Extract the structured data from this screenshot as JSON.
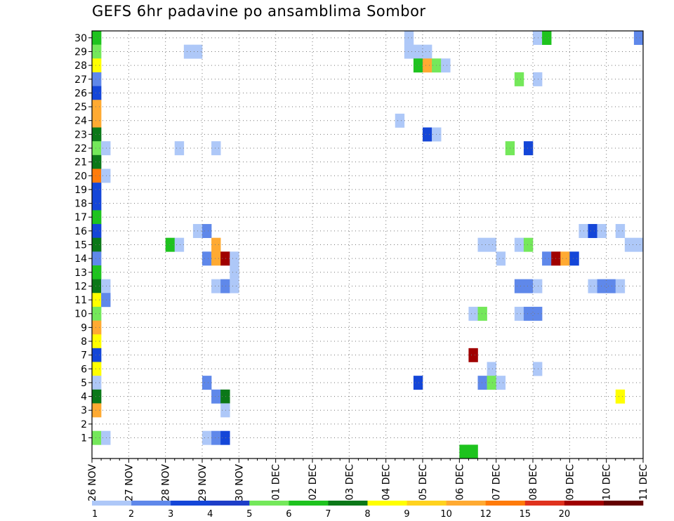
{
  "chart_data": {
    "type": "heatmap",
    "title": "GEFS 6hr padavine po ansamblima Sombor",
    "members": [
      1,
      2,
      3,
      4,
      5,
      6,
      7,
      8,
      9,
      10,
      11,
      12,
      13,
      14,
      15,
      16,
      17,
      18,
      19,
      20,
      21,
      22,
      23,
      24,
      25,
      26,
      27,
      28,
      29,
      30
    ],
    "dates": [
      "26 NOV",
      "27 NOV",
      "28 NOV",
      "29 NOV",
      "30 NOV",
      "01 DEC",
      "02 DEC",
      "03 DEC",
      "04 DEC",
      "05 DEC",
      "06 DEC",
      "07 DEC",
      "08 DEC",
      "09 DEC",
      "10 DEC",
      "11 DEC"
    ],
    "steps_per_day": 4,
    "grid": true,
    "legend": {
      "placement": "bottom",
      "labels": [
        "1",
        "2",
        "3",
        "4",
        "5",
        "6",
        "7",
        "8",
        "9",
        "10",
        "12",
        "15",
        "20"
      ],
      "colors": [
        "#aec8f8",
        "#5f88ea",
        "#1446d8",
        "#1e3ec8",
        "#74e85a",
        "#1ec31e",
        "#0b7818",
        "#ffff00",
        "#ffd21e",
        "#ffaa32",
        "#ff7b0a",
        "#e0321e",
        "#a00000",
        "#640000"
      ]
    },
    "cells": [
      {
        "m": 30,
        "t": 0,
        "c": "#1ec31e"
      },
      {
        "m": 29,
        "t": 0,
        "c": "#74e85a"
      },
      {
        "m": 28,
        "t": 0,
        "c": "#ffff00"
      },
      {
        "m": 27,
        "t": 0,
        "c": "#5f88ea"
      },
      {
        "m": 26,
        "t": 0,
        "c": "#1446d8"
      },
      {
        "m": 25,
        "t": 0,
        "c": "#ffaa32"
      },
      {
        "m": 24,
        "t": 0,
        "c": "#ffaa32"
      },
      {
        "m": 23,
        "t": 0,
        "c": "#0b7818"
      },
      {
        "m": 22,
        "t": 0,
        "c": "#74e85a"
      },
      {
        "m": 21,
        "t": 0,
        "c": "#0b7818"
      },
      {
        "m": 20,
        "t": 0,
        "c": "#ff7b0a"
      },
      {
        "m": 19,
        "t": 0,
        "c": "#1446d8"
      },
      {
        "m": 18,
        "t": 0,
        "c": "#1446d8"
      },
      {
        "m": 17,
        "t": 0,
        "c": "#1ec31e"
      },
      {
        "m": 16,
        "t": 0,
        "c": "#1446d8"
      },
      {
        "m": 15,
        "t": 0,
        "c": "#0b7818"
      },
      {
        "m": 14,
        "t": 0,
        "c": "#5f88ea"
      },
      {
        "m": 13,
        "t": 0,
        "c": "#1ec31e"
      },
      {
        "m": 12,
        "t": 0,
        "c": "#0b7818"
      },
      {
        "m": 11,
        "t": 0,
        "c": "#ffff00"
      },
      {
        "m": 10,
        "t": 0,
        "c": "#74e85a"
      },
      {
        "m": 9,
        "t": 0,
        "c": "#ffaa32"
      },
      {
        "m": 8,
        "t": 0,
        "c": "#ffff00"
      },
      {
        "m": 7,
        "t": 0,
        "c": "#1446d8"
      },
      {
        "m": 6,
        "t": 0,
        "c": "#ffff00"
      },
      {
        "m": 5,
        "t": 0,
        "c": "#aec8f8"
      },
      {
        "m": 4,
        "t": 0,
        "c": "#0b7818"
      },
      {
        "m": 3,
        "t": 0,
        "c": "#ffaa32"
      },
      {
        "m": 1,
        "t": 0,
        "c": "#74e85a"
      },
      {
        "m": 22,
        "t": 1,
        "c": "#aec8f8"
      },
      {
        "m": 20,
        "t": 1,
        "c": "#aec8f8"
      },
      {
        "m": 12,
        "t": 1,
        "c": "#aec8f8"
      },
      {
        "m": 11,
        "t": 1,
        "c": "#5f88ea"
      },
      {
        "m": 1,
        "t": 1,
        "c": "#aec8f8"
      },
      {
        "m": 15,
        "t": 8,
        "c": "#1ec31e"
      },
      {
        "m": 15,
        "t": 9,
        "c": "#aec8f8"
      },
      {
        "m": 22,
        "t": 9,
        "c": "#aec8f8"
      },
      {
        "m": 29,
        "t": 10,
        "c": "#aec8f8"
      },
      {
        "m": 29,
        "t": 11,
        "c": "#aec8f8"
      },
      {
        "m": 16,
        "t": 11,
        "c": "#aec8f8"
      },
      {
        "m": 16,
        "t": 12,
        "c": "#5f88ea"
      },
      {
        "m": 14,
        "t": 12,
        "c": "#5f88ea"
      },
      {
        "m": 5,
        "t": 12,
        "c": "#5f88ea"
      },
      {
        "m": 1,
        "t": 12,
        "c": "#aec8f8"
      },
      {
        "m": 22,
        "t": 13,
        "c": "#aec8f8"
      },
      {
        "m": 15,
        "t": 13,
        "c": "#ffaa32"
      },
      {
        "m": 14,
        "t": 13,
        "c": "#ffaa32"
      },
      {
        "m": 12,
        "t": 13,
        "c": "#aec8f8"
      },
      {
        "m": 4,
        "t": 13,
        "c": "#5f88ea"
      },
      {
        "m": 1,
        "t": 13,
        "c": "#5f88ea"
      },
      {
        "m": 14,
        "t": 14,
        "c": "#a00000"
      },
      {
        "m": 12,
        "t": 14,
        "c": "#5f88ea"
      },
      {
        "m": 4,
        "t": 14,
        "c": "#0b7818"
      },
      {
        "m": 3,
        "t": 14,
        "c": "#aec8f8"
      },
      {
        "m": 1,
        "t": 14,
        "c": "#1446d8"
      },
      {
        "m": 14,
        "t": 15,
        "c": "#aec8f8"
      },
      {
        "m": 13,
        "t": 15,
        "c": "#aec8f8"
      },
      {
        "m": 12,
        "t": 15,
        "c": "#aec8f8"
      },
      {
        "m": 24,
        "t": 33,
        "c": "#aec8f8"
      },
      {
        "m": 30,
        "t": 34,
        "c": "#aec8f8"
      },
      {
        "m": 29,
        "t": 34,
        "c": "#aec8f8"
      },
      {
        "m": 29,
        "t": 35,
        "c": "#aec8f8"
      },
      {
        "m": 28,
        "t": 35,
        "c": "#1ec31e"
      },
      {
        "m": 5,
        "t": 35,
        "c": "#1446d8"
      },
      {
        "m": 29,
        "t": 36,
        "c": "#aec8f8"
      },
      {
        "m": 28,
        "t": 36,
        "c": "#ffaa32"
      },
      {
        "m": 23,
        "t": 36,
        "c": "#1446d8"
      },
      {
        "m": 28,
        "t": 37,
        "c": "#74e85a"
      },
      {
        "m": 23,
        "t": 37,
        "c": "#aec8f8"
      },
      {
        "m": 28,
        "t": 38,
        "c": "#aec8f8"
      },
      {
        "m": 0,
        "t": 40,
        "c": "#1ec31e"
      },
      {
        "m": 0,
        "t": 41,
        "c": "#1ec31e"
      },
      {
        "m": 10,
        "t": 41,
        "c": "#aec8f8"
      },
      {
        "m": 7,
        "t": 41,
        "c": "#a00000"
      },
      {
        "m": 10,
        "t": 42,
        "c": "#74e85a"
      },
      {
        "m": 5,
        "t": 42,
        "c": "#5f88ea"
      },
      {
        "m": 15,
        "t": 42,
        "c": "#aec8f8"
      },
      {
        "m": 15,
        "t": 43,
        "c": "#aec8f8"
      },
      {
        "m": 6,
        "t": 43,
        "c": "#aec8f8"
      },
      {
        "m": 5,
        "t": 43,
        "c": "#74e85a"
      },
      {
        "m": 5,
        "t": 44,
        "c": "#aec8f8"
      },
      {
        "m": 14,
        "t": 44,
        "c": "#aec8f8"
      },
      {
        "m": 22,
        "t": 45,
        "c": "#74e85a"
      },
      {
        "m": 27,
        "t": 46,
        "c": "#74e85a"
      },
      {
        "m": 15,
        "t": 46,
        "c": "#aec8f8"
      },
      {
        "m": 12,
        "t": 46,
        "c": "#5f88ea"
      },
      {
        "m": 10,
        "t": 46,
        "c": "#aec8f8"
      },
      {
        "m": 22,
        "t": 47,
        "c": "#1446d8"
      },
      {
        "m": 15,
        "t": 47,
        "c": "#74e85a"
      },
      {
        "m": 12,
        "t": 47,
        "c": "#5f88ea"
      },
      {
        "m": 10,
        "t": 47,
        "c": "#5f88ea"
      },
      {
        "m": 30,
        "t": 48,
        "c": "#aec8f8"
      },
      {
        "m": 27,
        "t": 48,
        "c": "#aec8f8"
      },
      {
        "m": 12,
        "t": 48,
        "c": "#aec8f8"
      },
      {
        "m": 10,
        "t": 48,
        "c": "#5f88ea"
      },
      {
        "m": 6,
        "t": 48,
        "c": "#aec8f8"
      },
      {
        "m": 30,
        "t": 49,
        "c": "#1ec31e"
      },
      {
        "m": 14,
        "t": 49,
        "c": "#5f88ea"
      },
      {
        "m": 14,
        "t": 50,
        "c": "#a00000"
      },
      {
        "m": 14,
        "t": 51,
        "c": "#ffaa32"
      },
      {
        "m": 14,
        "t": 52,
        "c": "#1446d8"
      },
      {
        "m": 16,
        "t": 53,
        "c": "#aec8f8"
      },
      {
        "m": 16,
        "t": 54,
        "c": "#1446d8"
      },
      {
        "m": 12,
        "t": 54,
        "c": "#aec8f8"
      },
      {
        "m": 16,
        "t": 55,
        "c": "#aec8f8"
      },
      {
        "m": 12,
        "t": 55,
        "c": "#5f88ea"
      },
      {
        "m": 12,
        "t": 56,
        "c": "#5f88ea"
      },
      {
        "m": 16,
        "t": 57,
        "c": "#aec8f8"
      },
      {
        "m": 12,
        "t": 57,
        "c": "#aec8f8"
      },
      {
        "m": 4,
        "t": 57,
        "c": "#ffff00"
      },
      {
        "m": 15,
        "t": 58,
        "c": "#aec8f8"
      },
      {
        "m": 15,
        "t": 59,
        "c": "#aec8f8"
      },
      {
        "m": 30,
        "t": 59,
        "c": "#5f88ea"
      }
    ]
  }
}
